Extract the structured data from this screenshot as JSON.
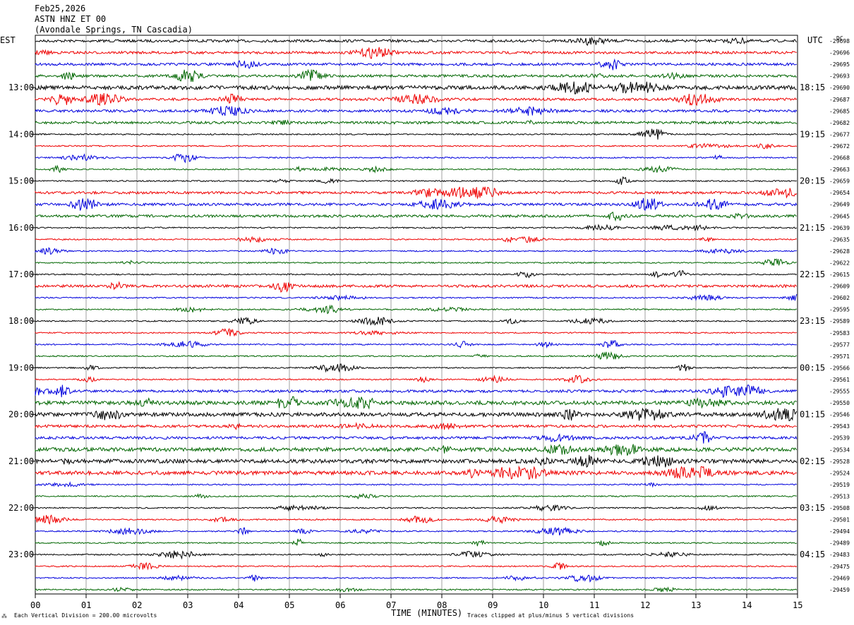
{
  "header": {
    "date": "Feb25,2026",
    "station": "ASTN HNZ ET 00",
    "location": "(Avondale Springs, TN Cascadia)"
  },
  "axes": {
    "left_tz": "EST",
    "right_tz": "UTC",
    "dc_label": "DC"
  },
  "chart_data": {
    "type": "line",
    "title": "",
    "xlabel": "TIME (MINUTES)",
    "x_ticks": [
      "00",
      "01",
      "02",
      "03",
      "04",
      "05",
      "06",
      "07",
      "08",
      "09",
      "10",
      "11",
      "12",
      "13",
      "14",
      "15"
    ],
    "xlim": [
      0,
      15
    ],
    "trace_minutes_per_line": 15,
    "left_hour_labels": [
      "13:00",
      "14:00",
      "15:00",
      "16:00",
      "17:00",
      "18:00",
      "19:00",
      "20:00",
      "21:00",
      "22:00",
      "23:00"
    ],
    "right_hour_labels": [
      "18:15",
      "19:15",
      "20:15",
      "21:15",
      "22:15",
      "23:15",
      "00:15",
      "01:15",
      "02:15",
      "03:15",
      "04:15"
    ],
    "dc_offsets": [
      "-29698",
      "-29696",
      "-29695",
      "-29693",
      "-29690",
      "-29687",
      "-29685",
      "-29682",
      "-29677",
      "-29672",
      "-29668",
      "-29663",
      "-29659",
      "-29654",
      "-29649",
      "-29645",
      "-29639",
      "-29635",
      "-29628",
      "-29622",
      "-29615",
      "-29609",
      "-29602",
      "-29595",
      "-29589",
      "-29583",
      "-29577",
      "-29571",
      "-29566",
      "-29561",
      "-29555",
      "-29550",
      "-29546",
      "-29543",
      "-29539",
      "-29534",
      "-29528",
      "-29524",
      "-29519",
      "-29513",
      "-29508",
      "-29501",
      "-29494",
      "-29489",
      "-29483",
      "-29475",
      "-29469",
      "-29459"
    ],
    "trace_colors": [
      "#000000",
      "#ee0000",
      "#0000dd",
      "#006600"
    ],
    "trace_count": 48,
    "amplitude_profile": [
      2,
      2,
      2,
      2,
      3,
      2,
      2,
      2,
      1,
      1,
      1,
      1,
      1,
      2,
      2,
      2,
      1,
      1,
      1,
      1,
      1,
      2,
      1,
      1,
      1,
      1,
      1,
      1,
      1,
      1,
      2,
      3,
      3,
      2,
      2,
      3,
      3,
      3,
      1,
      1,
      1,
      1,
      1,
      1,
      1,
      1,
      1,
      1
    ]
  },
  "footer": {
    "vertical_division": "Each Vertical Division =  200.00 microvolts",
    "clip_note": "Traces clipped at plus/minus 5 vertical divisions"
  }
}
